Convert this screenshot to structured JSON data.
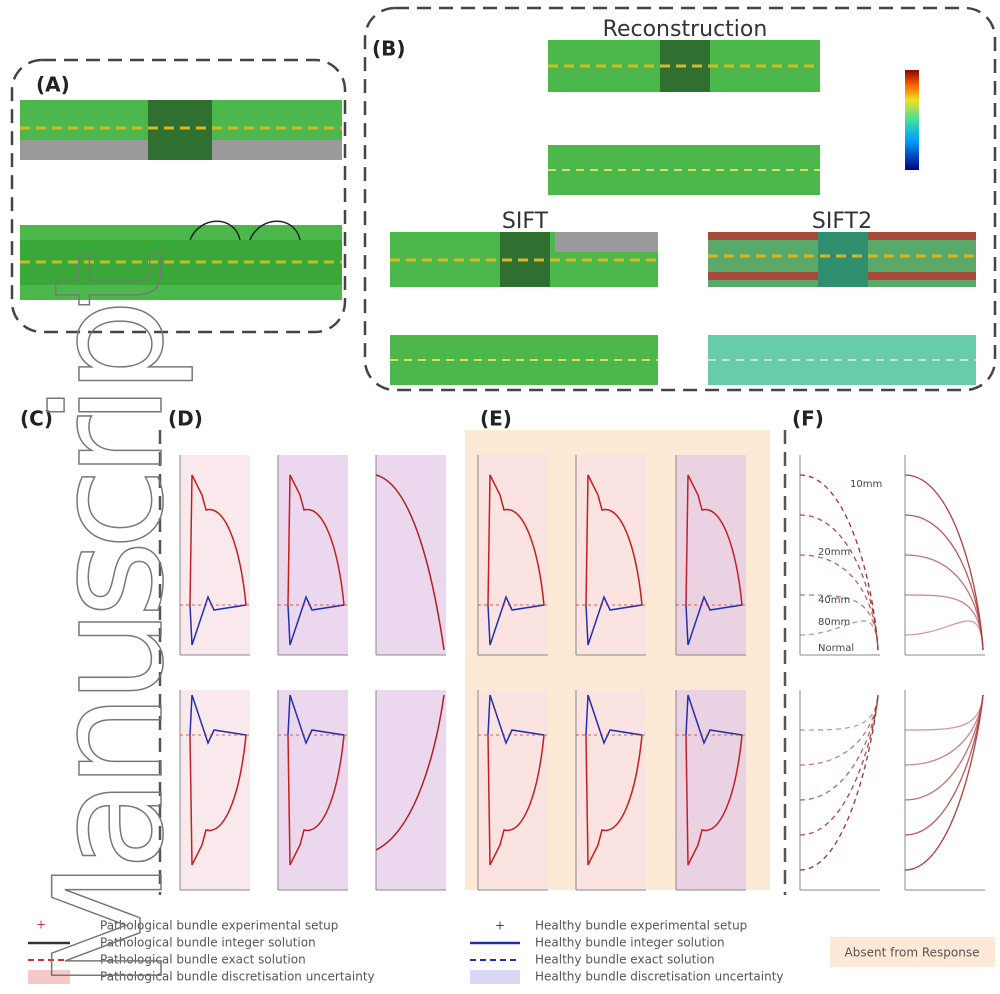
{
  "panels": {
    "A": "(A)",
    "B": "(B)",
    "C": "(C)",
    "D": "(D)",
    "E": "(E)",
    "F": "(F)"
  },
  "panel_b": {
    "reconstruction": "Reconstruction",
    "sift": "SIFT",
    "sift2": "SIFT2"
  },
  "panel_f": {
    "lengths": [
      "10mm",
      "20mm",
      "40mm",
      "80mm",
      "Normal"
    ]
  },
  "legend": {
    "pathological": [
      "Pathological bundle experimental setup",
      "Pathological bundle integer solution",
      "Pathological bundle exact solution",
      "Pathological bundle discretisation uncertainty"
    ],
    "healthy": [
      "Healthy bundle experimental setup",
      "Healthy bundle integer solution",
      "Healthy bundle exact solution",
      "Healthy bundle discretisation uncertainty"
    ],
    "absent": "Absent from Response"
  },
  "watermark": "Manuscript"
}
